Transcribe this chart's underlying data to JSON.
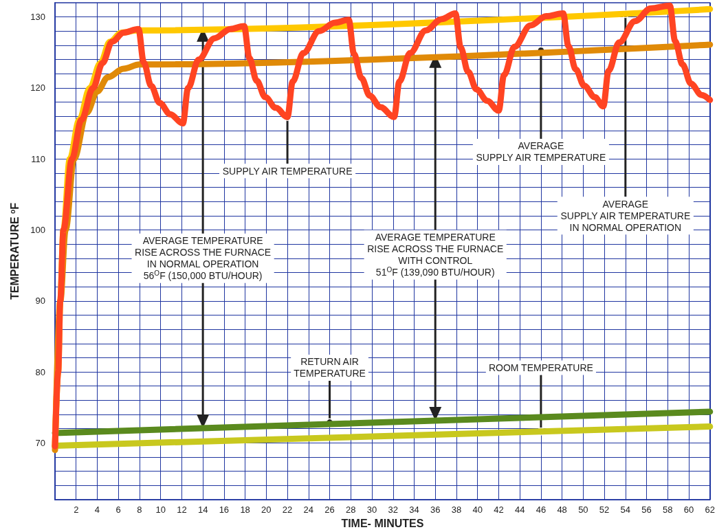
{
  "chart_data": {
    "type": "line",
    "xlabel": "TIME- MINUTES",
    "ylabel": "TEMPERATURE $^{o}$F",
    "xlim": [
      0,
      62
    ],
    "ylim": [
      62,
      132
    ],
    "xticks": [
      {
        "value": 0,
        "label": null
      },
      2,
      4,
      6,
      8,
      10,
      12,
      14,
      16,
      18,
      20,
      22,
      24,
      26,
      28,
      30,
      32,
      34,
      36,
      38,
      40,
      42,
      44,
      46,
      48,
      50,
      52,
      54,
      56,
      58,
      60,
      62
    ],
    "yticks": [
      {
        "value": 64,
        "label": null
      },
      {
        "value": 66,
        "label": null
      },
      {
        "value": 68,
        "label": null
      },
      70,
      {
        "value": 72,
        "label": null
      },
      {
        "value": 74,
        "label": null
      },
      {
        "value": 76,
        "label": null
      },
      {
        "value": 78,
        "label": null
      },
      80,
      {
        "value": 82,
        "label": null
      },
      {
        "value": 84,
        "label": null
      },
      {
        "value": 86,
        "label": null
      },
      {
        "value": 88,
        "label": null
      },
      90,
      {
        "value": 92,
        "label": null
      },
      {
        "value": 94,
        "label": null
      },
      {
        "value": 96,
        "label": null
      },
      {
        "value": 98,
        "label": null
      },
      100,
      {
        "value": 102,
        "label": null
      },
      {
        "value": 104,
        "label": null
      },
      {
        "value": 106,
        "label": null
      },
      {
        "value": 108,
        "label": null
      },
      110,
      {
        "value": 112,
        "label": null
      },
      {
        "value": 114,
        "label": null
      },
      {
        "value": 116,
        "label": null
      },
      {
        "value": 118,
        "label": null
      },
      120,
      {
        "value": 122,
        "label": null
      },
      {
        "value": 124,
        "label": null
      },
      {
        "value": 126,
        "label": null
      },
      {
        "value": 128,
        "label": null
      },
      130
    ],
    "grid": true,
    "line_style": "solid",
    "series": [
      {
        "color": "#ff4422",
        "x": [
          0,
          0.3,
          0.5,
          0.8,
          1.6,
          2.5,
          3.6,
          4.5,
          5.4,
          6.5,
          7.9,
          8.4,
          9.1,
          9.9,
          10.9,
          12.1,
          12.6,
          13.6,
          15.1,
          16.6,
          17.9,
          18.4,
          19.1,
          19.9,
          20.9,
          22,
          22.5,
          23.5,
          25,
          26.5,
          27.8,
          28.3,
          29,
          29.8,
          30.8,
          32.1,
          32.6,
          33.6,
          35.1,
          36.6,
          37.9,
          38.4,
          39.1,
          39.9,
          40.9,
          42,
          42.5,
          43.5,
          45,
          46.5,
          48.1,
          48.6,
          49.3,
          50.1,
          51.1,
          51.9,
          52.4,
          53.4,
          54.9,
          56.4,
          58.2,
          58.7,
          59.4,
          60.2,
          61.2,
          62
        ],
        "values": [
          69.5,
          80,
          90,
          100,
          110,
          115.5,
          120,
          123.5,
          126.5,
          127.8,
          128.3,
          123.6,
          120.3,
          117.9,
          116.3,
          115,
          120,
          124,
          127,
          128.3,
          128.7,
          124.2,
          121,
          118.7,
          117.2,
          115.9,
          120.9,
          124.9,
          128,
          129.2,
          129.6,
          124.8,
          121.4,
          118.9,
          117.3,
          115.9,
          120.9,
          124.9,
          128.1,
          129.7,
          130.5,
          125.7,
          122.3,
          119.8,
          118.2,
          116.8,
          121.8,
          125.8,
          128.8,
          130.1,
          130.5,
          125.9,
          122.6,
          120.3,
          118.7,
          117.4,
          122.4,
          126.4,
          129.4,
          131.2,
          131.6,
          126.6,
          123.3,
          120.6,
          119,
          118.3
        ]
      },
      {
        "color": "#ffc800",
        "x": [
          0,
          0.3,
          0.5,
          0.8,
          1.4,
          2.3,
          3.3,
          4.3,
          5.2,
          6.3,
          7.8,
          62
        ],
        "values": [
          69.5,
          80,
          90,
          100,
          110,
          115.5,
          120,
          123.5,
          126.5,
          127.8,
          128.1,
          131.1
        ]
      },
      {
        "color": "#e08a08",
        "x": [
          0,
          0.5,
          1,
          1.8,
          3,
          4,
          5,
          6.5,
          8,
          62
        ],
        "values": [
          69,
          90,
          100,
          110,
          116.5,
          119.5,
          121.5,
          122.7,
          123.3,
          126.1
        ]
      },
      {
        "color": "#5a8a1e",
        "x": [
          0,
          62
        ],
        "values": [
          71.4,
          74.4
        ]
      },
      {
        "color": "#c8c81e",
        "x": [
          0,
          62
        ],
        "values": [
          69.6,
          72.3
        ]
      }
    ],
    "annotations": [
      {
        "text": "SUPPLY AIR TEMPERATURE",
        "x": 22,
        "y": 115.9
      },
      {
        "text": "AVERAGE\nSUPPLY AIR TEMPERATURE",
        "x": 46,
        "y": 125.3
      },
      {
        "text": "AVERAGE\nSUPPLY AIR TEMPERATURE\nIN NORMAL OPERATION",
        "x": 54,
        "y": 130.4
      },
      "AVERAGE TEMPERATURE\nRISE ACROSS THE FURNACE\nIN NORMAL OPERATION\n56$^{O}$F (150,000 BTU/HOUR)",
      "AVERAGE TEMPERATURE\nRISE ACROSS THE FURNACE\nWITH CONTROL\n51$^{O}$F (139,090 BTU/HOUR)",
      {
        "text": "RETURN AIR\nTEMPERATURE",
        "x": 26,
        "y": 72.9
      },
      {
        "text": "ROOM TEMPERATURE",
        "x": 46,
        "y": 71.6
      }
    ]
  }
}
